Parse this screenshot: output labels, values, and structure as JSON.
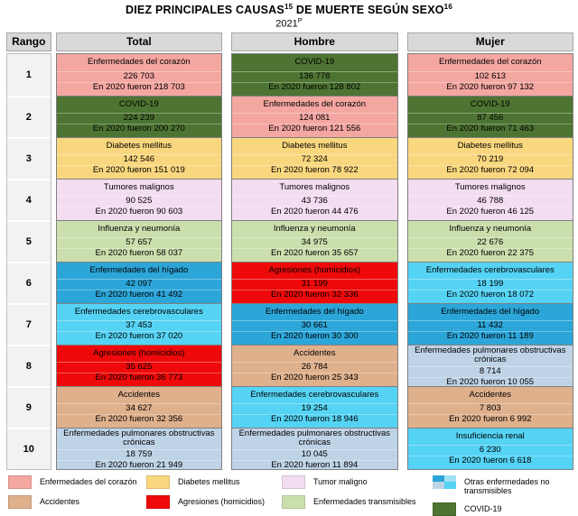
{
  "title": {
    "part1": "DIEZ PRINCIPALES CAUSAS",
    "sup1": "15",
    "part2": " DE MUERTE SEGÚN SEXO",
    "sup2": "16",
    "subtitle": "2021",
    "subtitle_sup": "P"
  },
  "header": {
    "rank": "Rango",
    "columns": [
      "Total",
      "Hombre",
      "Mujer"
    ]
  },
  "colors": {
    "heart": "#F4A6A1",
    "covid": "#4D7432",
    "diabetes": "#F9D77E",
    "tumor": "#F3DDF1",
    "transmissible": "#CBDFAD",
    "liver": "#2CA6D9",
    "cyan": "#55D3F4",
    "homicide": "#EE0A0A",
    "accident": "#DFB08C",
    "epoc": "#BFD3E7",
    "header_bg": "#D9D9D9",
    "rank_bg": "#F2F2F2",
    "multi_swatch": [
      "#2CA6D9",
      "#9FE2F5",
      "#BFD3E7",
      "#55D3F4"
    ]
  },
  "rows": [
    {
      "rank": "1",
      "total": {
        "cause": "Enfermedades del corazón",
        "value": "226 703",
        "prev": "En 2020 fueron 218 703",
        "color": "heart"
      },
      "hombre": {
        "cause": "COVID-19",
        "value": "136 778",
        "prev": "En 2020 fueron 128 802",
        "color": "covid"
      },
      "mujer": {
        "cause": "Enfermedades del corazón",
        "value": "102 613",
        "prev": "En 2020 fueron 97 132",
        "color": "heart"
      }
    },
    {
      "rank": "2",
      "total": {
        "cause": "COVID-19",
        "value": "224 239",
        "prev": "En 2020 fueron 200 270",
        "color": "covid"
      },
      "hombre": {
        "cause": "Enfermedades del corazón",
        "value": "124 081",
        "prev": "En 2020 fueron 121 556",
        "color": "heart"
      },
      "mujer": {
        "cause": "COVID-19",
        "value": "87 456",
        "prev": "En 2020 fueron 71 463",
        "color": "covid"
      }
    },
    {
      "rank": "3",
      "total": {
        "cause": "Diabetes mellitus",
        "value": "142 546",
        "prev": "En 2020 fueron 151 019",
        "color": "diabetes"
      },
      "hombre": {
        "cause": "Diabetes mellitus",
        "value": "72 324",
        "prev": "En 2020 fueron 78 922",
        "color": "diabetes"
      },
      "mujer": {
        "cause": "Diabetes mellitus",
        "value": "70 219",
        "prev": "En 2020 fueron 72 094",
        "color": "diabetes"
      }
    },
    {
      "rank": "4",
      "total": {
        "cause": "Tumores malignos",
        "value": "90 525",
        "prev": "En 2020 fueron 90 603",
        "color": "tumor"
      },
      "hombre": {
        "cause": "Tumores malignos",
        "value": "43 736",
        "prev": "En 2020 fueron 44 476",
        "color": "tumor"
      },
      "mujer": {
        "cause": "Tumores malignos",
        "value": "46 788",
        "prev": "En 2020 fueron 46 125",
        "color": "tumor"
      }
    },
    {
      "rank": "5",
      "total": {
        "cause": "Influenza y neumonía",
        "value": "57 657",
        "prev": "En 2020 fueron 58 037",
        "color": "transmissible"
      },
      "hombre": {
        "cause": "Influenza y neumonía",
        "value": "34 975",
        "prev": "En 2020 fueron 35 657",
        "color": "transmissible"
      },
      "mujer": {
        "cause": "Influenza y neumonía",
        "value": "22 676",
        "prev": "En 2020 fueron 22 375",
        "color": "transmissible"
      }
    },
    {
      "rank": "6",
      "total": {
        "cause": "Enfermedades del hígado",
        "value": "42 097",
        "prev": "En 2020 fueron 41 492",
        "color": "liver"
      },
      "hombre": {
        "cause": "Agresiones (homicidios)",
        "value": "31 199",
        "prev": "En 2020 fueron 32 336",
        "color": "homicide"
      },
      "mujer": {
        "cause": "Enfermedades cerebrovasculares",
        "value": "18 199",
        "prev": "En 2020 fueron 18 072",
        "color": "cyan"
      }
    },
    {
      "rank": "7",
      "total": {
        "cause": "Enfermedades cerebrovasculares",
        "value": "37 453",
        "prev": "En 2020 fueron 37 020",
        "color": "cyan"
      },
      "hombre": {
        "cause": "Enfermedades del hígado",
        "value": "30 661",
        "prev": "En 2020 fueron 30 300",
        "color": "liver"
      },
      "mujer": {
        "cause": "Enfermedades del hígado",
        "value": "11 432",
        "prev": "En 2020 fueron 11 189",
        "color": "liver"
      }
    },
    {
      "rank": "8",
      "total": {
        "cause": "Agresiones (homicidios)",
        "value": "35 625",
        "prev": "En 2020 fueron 36 773",
        "color": "homicide"
      },
      "hombre": {
        "cause": "Accidentes",
        "value": "26 784",
        "prev": "En 2020 fueron 25 343",
        "color": "accident"
      },
      "mujer": {
        "cause": "Enfermedades pulmonares obstructivas crónicas",
        "value": "8 714",
        "prev": "En 2020 fueron 10 055",
        "color": "epoc"
      }
    },
    {
      "rank": "9",
      "total": {
        "cause": "Accidentes",
        "value": "34 627",
        "prev": "En 2020 fueron 32 356",
        "color": "accident"
      },
      "hombre": {
        "cause": "Enfermedades cerebrovasculares",
        "value": "19 254",
        "prev": "En 2020 fueron 18 946",
        "color": "cyan"
      },
      "mujer": {
        "cause": "Accidentes",
        "value": "7 803",
        "prev": "En 2020 fueron 6 992",
        "color": "accident"
      }
    },
    {
      "rank": "10",
      "total": {
        "cause": "Enfermedades pulmonares obstructivas crónicas",
        "value": "18 759",
        "prev": "En 2020 fueron 21 949",
        "color": "epoc"
      },
      "hombre": {
        "cause": "Enfermedades pulmonares obstructivas crónicas",
        "value": "10 045",
        "prev": "En 2020 fueron 11 894",
        "color": "epoc"
      },
      "mujer": {
        "cause": "Insuficiencia renal",
        "value": "6 230",
        "prev": "En 2020 fueron 6 618",
        "color": "cyan"
      }
    }
  ],
  "legend": [
    {
      "label": "Enfermedades del corazón",
      "color": "heart"
    },
    {
      "label": "Accidentes",
      "color": "accident"
    },
    {
      "label": "Diabetes mellitus",
      "color": "diabetes"
    },
    {
      "label": "Agresiones (homicidios)",
      "color": "homicide"
    },
    {
      "label": "Tumor maligno",
      "color": "tumor"
    },
    {
      "label": "Enfermedades transmisibles",
      "color": "transmissible"
    },
    {
      "label": "Otras enfermedades no transmisibles",
      "color": "multi"
    },
    {
      "label": "COVID-19",
      "color": "covid"
    }
  ],
  "chart_data": {
    "type": "table",
    "title": "Diez principales causas de muerte según sexo",
    "subtitle": "2021 (cifras preliminares)",
    "columns": [
      "Rango",
      "Total",
      "Hombre",
      "Mujer"
    ],
    "rows": [
      {
        "rango": 1,
        "total": {
          "causa": "Enfermedades del corazón",
          "muertes_2021": 226703,
          "muertes_2020": 218703
        },
        "hombre": {
          "causa": "COVID-19",
          "muertes_2021": 136778,
          "muertes_2020": 128802
        },
        "mujer": {
          "causa": "Enfermedades del corazón",
          "muertes_2021": 102613,
          "muertes_2020": 97132
        }
      },
      {
        "rango": 2,
        "total": {
          "causa": "COVID-19",
          "muertes_2021": 224239,
          "muertes_2020": 200270
        },
        "hombre": {
          "causa": "Enfermedades del corazón",
          "muertes_2021": 124081,
          "muertes_2020": 121556
        },
        "mujer": {
          "causa": "COVID-19",
          "muertes_2021": 87456,
          "muertes_2020": 71463
        }
      },
      {
        "rango": 3,
        "total": {
          "causa": "Diabetes mellitus",
          "muertes_2021": 142546,
          "muertes_2020": 151019
        },
        "hombre": {
          "causa": "Diabetes mellitus",
          "muertes_2021": 72324,
          "muertes_2020": 78922
        },
        "mujer": {
          "causa": "Diabetes mellitus",
          "muertes_2021": 70219,
          "muertes_2020": 72094
        }
      },
      {
        "rango": 4,
        "total": {
          "causa": "Tumores malignos",
          "muertes_2021": 90525,
          "muertes_2020": 90603
        },
        "hombre": {
          "causa": "Tumores malignos",
          "muertes_2021": 43736,
          "muertes_2020": 44476
        },
        "mujer": {
          "causa": "Tumores malignos",
          "muertes_2021": 46788,
          "muertes_2020": 46125
        }
      },
      {
        "rango": 5,
        "total": {
          "causa": "Influenza y neumonía",
          "muertes_2021": 57657,
          "muertes_2020": 58037
        },
        "hombre": {
          "causa": "Influenza y neumonía",
          "muertes_2021": 34975,
          "muertes_2020": 35657
        },
        "mujer": {
          "causa": "Influenza y neumonía",
          "muertes_2021": 22676,
          "muertes_2020": 22375
        }
      },
      {
        "rango": 6,
        "total": {
          "causa": "Enfermedades del hígado",
          "muertes_2021": 42097,
          "muertes_2020": 41492
        },
        "hombre": {
          "causa": "Agresiones (homicidios)",
          "muertes_2021": 31199,
          "muertes_2020": 32336
        },
        "mujer": {
          "causa": "Enfermedades cerebrovasculares",
          "muertes_2021": 18199,
          "muertes_2020": 18072
        }
      },
      {
        "rango": 7,
        "total": {
          "causa": "Enfermedades cerebrovasculares",
          "muertes_2021": 37453,
          "muertes_2020": 37020
        },
        "hombre": {
          "causa": "Enfermedades del hígado",
          "muertes_2021": 30661,
          "muertes_2020": 30300
        },
        "mujer": {
          "causa": "Enfermedades del hígado",
          "muertes_2021": 11432,
          "muertes_2020": 11189
        }
      },
      {
        "rango": 8,
        "total": {
          "causa": "Agresiones (homicidios)",
          "muertes_2021": 35625,
          "muertes_2020": 36773
        },
        "hombre": {
          "causa": "Accidentes",
          "muertes_2021": 26784,
          "muertes_2020": 25343
        },
        "mujer": {
          "causa": "Enfermedades pulmonares obstructivas crónicas",
          "muertes_2021": 8714,
          "muertes_2020": 10055
        }
      },
      {
        "rango": 9,
        "total": {
          "causa": "Accidentes",
          "muertes_2021": 34627,
          "muertes_2020": 32356
        },
        "hombre": {
          "causa": "Enfermedades cerebrovasculares",
          "muertes_2021": 19254,
          "muertes_2020": 18946
        },
        "mujer": {
          "causa": "Accidentes",
          "muertes_2021": 7803,
          "muertes_2020": 6992
        }
      },
      {
        "rango": 10,
        "total": {
          "causa": "Enfermedades pulmonares obstructivas crónicas",
          "muertes_2021": 18759,
          "muertes_2020": 21949
        },
        "hombre": {
          "causa": "Enfermedades pulmonares obstructivas crónicas",
          "muertes_2021": 10045,
          "muertes_2020": 11894
        },
        "mujer": {
          "causa": "Insuficiencia renal",
          "muertes_2021": 6230,
          "muertes_2020": 6618
        }
      }
    ]
  }
}
